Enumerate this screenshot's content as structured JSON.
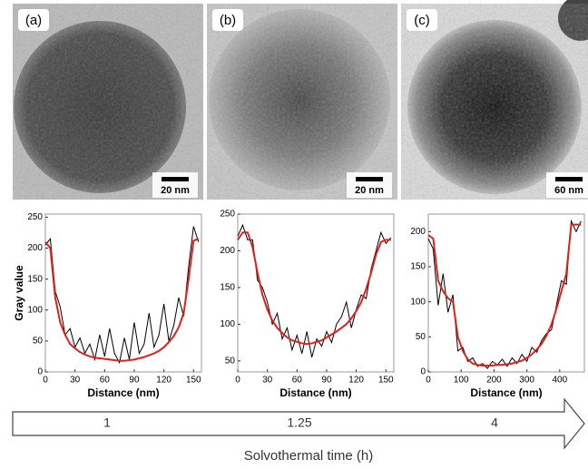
{
  "panels": [
    {
      "label": "(a)",
      "scale_bar": "20 nm"
    },
    {
      "label": "(b)",
      "scale_bar": "20 nm"
    },
    {
      "label": "(c)",
      "scale_bar": "60 nm"
    }
  ],
  "chart_data": [
    {
      "type": "line",
      "ylabel": "Gray value",
      "xlabel": "Distance (nm)",
      "xlim": [
        0,
        158
      ],
      "ylim": [
        0,
        255
      ],
      "xticks": [
        0,
        30,
        60,
        90,
        120,
        150
      ],
      "yticks": [
        0,
        50,
        100,
        150,
        200,
        250
      ],
      "x": [
        0,
        5,
        10,
        15,
        20,
        25,
        30,
        35,
        40,
        45,
        50,
        55,
        60,
        65,
        70,
        75,
        80,
        85,
        90,
        95,
        100,
        105,
        110,
        115,
        120,
        125,
        130,
        135,
        140,
        145,
        150,
        155
      ],
      "series": [
        {
          "color": "#000000",
          "values": [
            205,
            215,
            130,
            105,
            60,
            70,
            40,
            55,
            30,
            45,
            20,
            60,
            25,
            70,
            30,
            15,
            55,
            20,
            80,
            30,
            45,
            95,
            40,
            60,
            110,
            50,
            75,
            120,
            90,
            170,
            235,
            210
          ]
        },
        {
          "color": "#e0201b",
          "values": [
            210,
            200,
            120,
            80,
            60,
            45,
            38,
            32,
            28,
            25,
            23,
            22,
            21,
            20,
            19,
            18,
            18,
            19,
            20,
            22,
            24,
            27,
            30,
            34,
            40,
            48,
            58,
            72,
            95,
            150,
            212,
            215
          ]
        }
      ]
    },
    {
      "type": "line",
      "xlabel": "Distance (nm)",
      "xlim": [
        0,
        158
      ],
      "ylim": [
        35,
        250
      ],
      "xticks": [
        0,
        30,
        60,
        90,
        120,
        150
      ],
      "yticks": [
        50,
        100,
        150,
        200,
        250
      ],
      "x": [
        0,
        5,
        10,
        15,
        20,
        25,
        30,
        35,
        40,
        45,
        50,
        55,
        60,
        65,
        70,
        75,
        80,
        85,
        90,
        95,
        100,
        105,
        110,
        115,
        120,
        125,
        130,
        135,
        140,
        145,
        150,
        155
      ],
      "series": [
        {
          "color": "#000000",
          "values": [
            220,
            235,
            215,
            215,
            160,
            150,
            130,
            100,
            115,
            80,
            95,
            65,
            85,
            60,
            90,
            55,
            80,
            70,
            90,
            75,
            100,
            110,
            130,
            95,
            120,
            140,
            135,
            175,
            200,
            225,
            210,
            218
          ]
        },
        {
          "color": "#e0201b",
          "values": [
            215,
            225,
            225,
            205,
            170,
            140,
            120,
            105,
            95,
            88,
            82,
            78,
            76,
            74,
            73,
            74,
            76,
            78,
            82,
            86,
            90,
            95,
            100,
            108,
            118,
            130,
            148,
            170,
            195,
            212,
            215,
            215
          ]
        }
      ]
    },
    {
      "type": "line",
      "xlabel": "Distance (nm)",
      "xlim": [
        0,
        475
      ],
      "ylim": [
        0,
        225
      ],
      "xticks": [
        0,
        100,
        200,
        300,
        400
      ],
      "yticks": [
        0,
        50,
        100,
        150,
        200
      ],
      "x": [
        0,
        15,
        30,
        45,
        60,
        75,
        90,
        105,
        120,
        135,
        150,
        165,
        180,
        195,
        210,
        225,
        240,
        255,
        270,
        285,
        300,
        315,
        330,
        345,
        360,
        375,
        390,
        405,
        420,
        435,
        450,
        465
      ],
      "series": [
        {
          "color": "#000000",
          "values": [
            190,
            175,
            95,
            140,
            85,
            110,
            30,
            35,
            15,
            20,
            8,
            12,
            5,
            15,
            10,
            18,
            8,
            20,
            12,
            25,
            15,
            35,
            28,
            45,
            55,
            60,
            95,
            130,
            125,
            215,
            200,
            215
          ]
        },
        {
          "color": "#e0201b",
          "values": [
            195,
            190,
            130,
            115,
            105,
            100,
            50,
            30,
            18,
            12,
            10,
            9,
            9,
            9,
            10,
            10,
            11,
            12,
            14,
            16,
            20,
            25,
            32,
            40,
            52,
            68,
            90,
            115,
            140,
            210,
            210,
            210
          ]
        }
      ]
    }
  ],
  "timeline": {
    "labels": [
      "1",
      "1.25",
      "4"
    ],
    "title": "Solvothermal time (h)"
  }
}
